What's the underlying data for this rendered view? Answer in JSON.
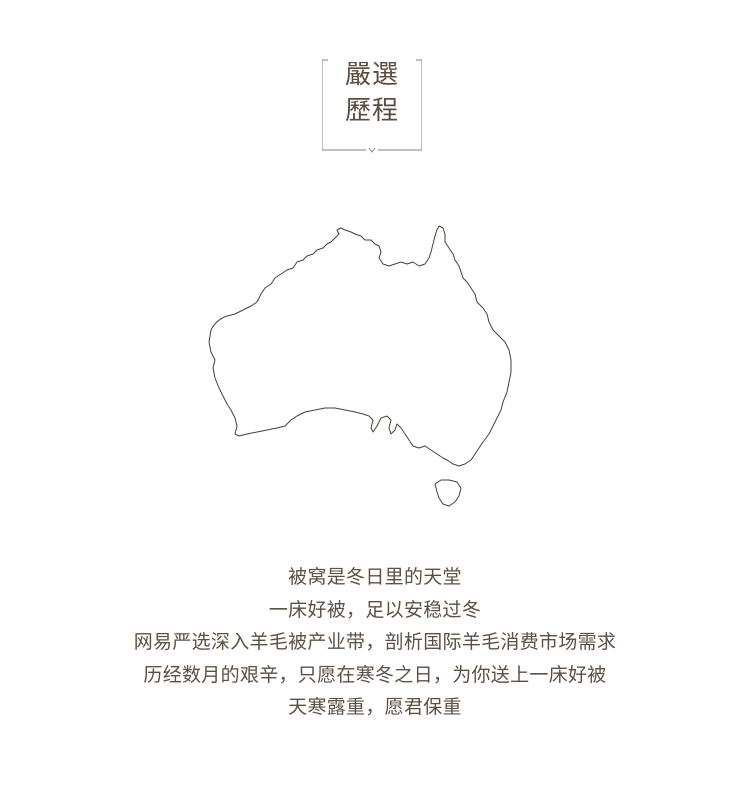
{
  "badge": {
    "line1": "嚴選",
    "line2": "歷程"
  },
  "map": {
    "icon": "australia-map-outline-icon",
    "stroke_color": "#4a3f36"
  },
  "copy": {
    "lines": [
      "被窝是冬日里的天堂",
      "一床好被，足以安稳过冬",
      "网易严选深入羊毛被产业带，剖析国际羊毛消费市场需求",
      "历经数月的艰辛，只愿在寒冬之日，为你送上一床好被",
      "天寒露重，愿君保重"
    ]
  },
  "colors": {
    "text": "#5e4f43",
    "frame": "#8a7d72",
    "background": "#ffffff"
  }
}
